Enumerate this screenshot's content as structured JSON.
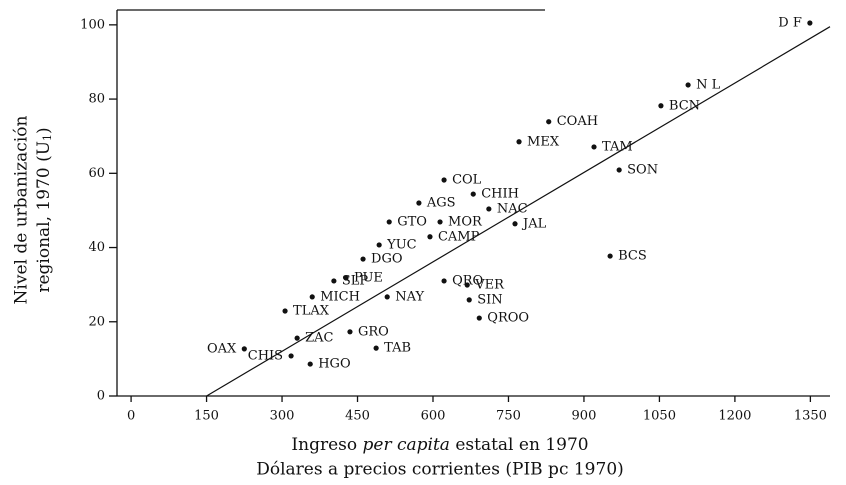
{
  "chart_data": {
    "type": "scatter",
    "y_label": [
      "Nivel de urbanización",
      "regional, 1970 (U",
      "1",
      ")"
    ],
    "x_label": {
      "line1": [
        "Ingreso ",
        "per capita",
        " estatal en 1970"
      ],
      "line2": "Dólares a precios corrientes (PIB pc 1970)"
    },
    "labels": [
      "D F",
      "N L",
      "BCN",
      "COAH",
      "MEX",
      "TAM",
      "SON",
      "COL",
      "CHIH",
      "AGS",
      "NAC",
      "GTO",
      "MOR",
      "JAL",
      "CAMP",
      "YUC",
      "BCS",
      "DGO",
      "SLP",
      "PUE",
      "QRO",
      "VER",
      "MICH",
      "NAY",
      "SIN",
      "TLAX",
      "QROO",
      "GRO",
      "ZAC",
      "OAX",
      "TAB",
      "CHIS",
      "HGO"
    ],
    "x": [
      1349,
      1107,
      1053,
      830,
      771,
      920,
      970,
      622,
      680,
      572,
      711,
      513,
      614,
      763,
      594,
      493,
      952,
      461,
      403,
      427,
      622,
      668,
      360,
      509,
      672,
      306,
      692,
      435,
      330,
      225,
      487,
      318,
      356
    ],
    "y": [
      100.5,
      83.8,
      78.2,
      73.9,
      68.5,
      67.1,
      60.9,
      58.2,
      54.4,
      52,
      50.4,
      46.9,
      46.9,
      46.4,
      42.9,
      40.7,
      37.7,
      36.9,
      31,
      31.8,
      31,
      29.9,
      26.7,
      26.7,
      25.9,
      22.9,
      21,
      17.3,
      15.6,
      12.7,
      12.9,
      10.8,
      8.6
    ],
    "trend_line": {
      "x": [
        150,
        1389
      ],
      "y": [
        0,
        99.5
      ]
    },
    "xlim": [
      -28,
      1389
    ],
    "xticks": [
      0,
      150,
      300,
      450,
      600,
      750,
      900,
      1050,
      1200,
      1350
    ],
    "ylim": [
      0,
      104
    ],
    "yticks": [
      0,
      20,
      40,
      60,
      80,
      100
    ],
    "color": "#111111"
  }
}
